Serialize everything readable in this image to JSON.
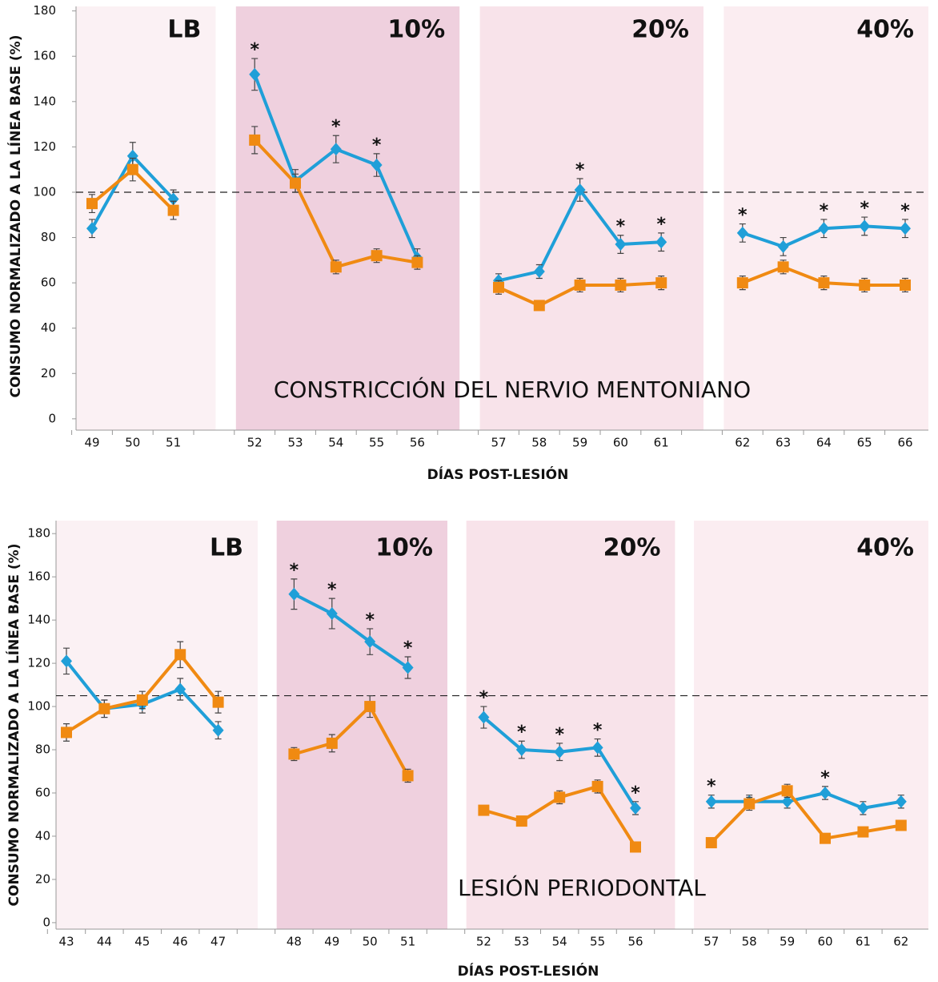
{
  "chart_data": [
    {
      "type": "line",
      "label": "CONSTRICCIÓN DEL NERVIO MENTONIANO",
      "x_label": "DÍAS POST-LESIÓN",
      "y_label": "CONSUMO NORMALIZADO A LA LÍNEA BASE (%)",
      "categories": [
        49,
        50,
        51,
        null,
        52,
        53,
        54,
        55,
        56,
        null,
        57,
        58,
        59,
        60,
        61,
        null,
        62,
        63,
        64,
        65,
        66
      ],
      "series": [
        {
          "color": "#1f9fd8",
          "marker": "diamond",
          "values": [
            84,
            116,
            97,
            null,
            152,
            105,
            119,
            112,
            71,
            null,
            61,
            65,
            101,
            77,
            78,
            null,
            82,
            76,
            84,
            85,
            84
          ],
          "errors": [
            4,
            6,
            4,
            null,
            7,
            5,
            6,
            5,
            4,
            null,
            3,
            3,
            5,
            4,
            4,
            null,
            4,
            4,
            4,
            4,
            4
          ]
        },
        {
          "color": "#f08a12",
          "marker": "square",
          "values": [
            95,
            110,
            92,
            null,
            123,
            104,
            67,
            72,
            69,
            null,
            58,
            50,
            59,
            59,
            60,
            null,
            60,
            67,
            60,
            59,
            59
          ],
          "errors": [
            4,
            5,
            4,
            null,
            6,
            4,
            3,
            3,
            3,
            null,
            3,
            2,
            3,
            3,
            3,
            null,
            3,
            3,
            3,
            3,
            3
          ]
        }
      ],
      "regions": [
        {
          "label": "LB",
          "color": "#fbf1f4"
        },
        {
          "label": "10%",
          "color": "#efd0de"
        },
        {
          "label": "20%",
          "color": "#f8e3ea"
        },
        {
          "label": "40%",
          "color": "#fbedf1"
        }
      ],
      "annotations": [
        {
          "x": 52,
          "text": "*"
        },
        {
          "x": 54,
          "text": "*"
        },
        {
          "x": 55,
          "text": "*"
        },
        {
          "x": 59,
          "text": "*"
        },
        {
          "x": 60,
          "text": "*"
        },
        {
          "x": 61,
          "text": "*"
        },
        {
          "x": 62,
          "text": "*"
        },
        {
          "x": 64,
          "text": "*"
        },
        {
          "x": 65,
          "text": "*"
        },
        {
          "x": 66,
          "text": "*"
        }
      ],
      "reference_line": 100,
      "ylim": [
        -5,
        182
      ],
      "yticks": [
        0,
        20,
        40,
        60,
        80,
        100,
        120,
        140,
        160,
        180
      ]
    },
    {
      "type": "line",
      "label": "LESIÓN PERIODONTAL",
      "x_label": "DÍAS POST-LESIÓN",
      "y_label": "CONSUMO NORMALIZADO A LA LÍNEA BASE (%)",
      "categories": [
        43,
        44,
        45,
        46,
        47,
        null,
        48,
        49,
        50,
        51,
        null,
        52,
        53,
        54,
        55,
        56,
        null,
        57,
        58,
        59,
        60,
        61,
        62
      ],
      "series": [
        {
          "color": "#1f9fd8",
          "marker": "diamond",
          "values": [
            121,
            99,
            101,
            108,
            89,
            null,
            152,
            143,
            130,
            118,
            null,
            95,
            80,
            79,
            81,
            53,
            null,
            56,
            56,
            56,
            60,
            53,
            56
          ],
          "errors": [
            6,
            4,
            4,
            5,
            4,
            null,
            7,
            7,
            6,
            5,
            null,
            5,
            4,
            4,
            4,
            3,
            null,
            3,
            3,
            3,
            3,
            3,
            3
          ]
        },
        {
          "color": "#f08a12",
          "marker": "square",
          "values": [
            88,
            99,
            103,
            124,
            102,
            null,
            78,
            83,
            100,
            68,
            null,
            52,
            47,
            58,
            63,
            35,
            null,
            37,
            55,
            61,
            39,
            42,
            45
          ],
          "errors": [
            4,
            4,
            4,
            6,
            5,
            null,
            3,
            4,
            5,
            3,
            null,
            2,
            2,
            3,
            3,
            2,
            null,
            2,
            3,
            3,
            2,
            2,
            2
          ]
        }
      ],
      "regions": [
        {
          "label": "LB",
          "color": "#fbf1f4"
        },
        {
          "label": "10%",
          "color": "#efd0de"
        },
        {
          "label": "20%",
          "color": "#f8e3ea"
        },
        {
          "label": "40%",
          "color": "#fbedf1"
        }
      ],
      "annotations": [
        {
          "x": 48,
          "text": "*"
        },
        {
          "x": 49,
          "text": "*"
        },
        {
          "x": 50,
          "text": "*"
        },
        {
          "x": 51,
          "text": "*"
        },
        {
          "x": 52,
          "text": "*"
        },
        {
          "x": 53,
          "text": "*"
        },
        {
          "x": 54,
          "text": "*"
        },
        {
          "x": 55,
          "text": "*"
        },
        {
          "x": 56,
          "text": "*"
        },
        {
          "x": 57,
          "text": "*"
        },
        {
          "x": 60,
          "text": "*"
        }
      ],
      "reference_line": 105,
      "ylim": [
        -3,
        186
      ],
      "yticks": [
        0,
        20,
        40,
        60,
        80,
        100,
        120,
        140,
        160,
        180
      ]
    }
  ]
}
